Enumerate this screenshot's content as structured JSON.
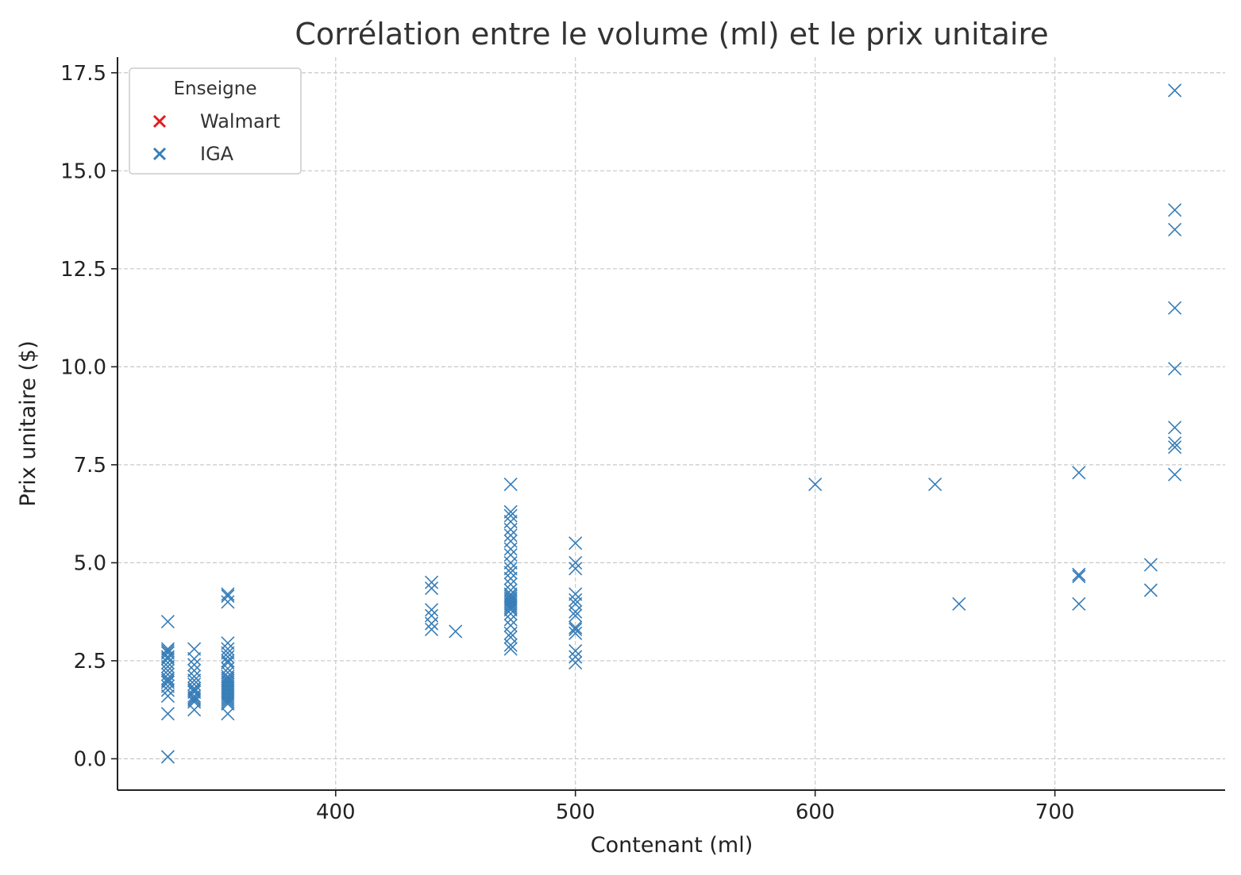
{
  "chart_data": {
    "type": "scatter",
    "title": "Corrélation entre le volume (ml) et le prix unitaire",
    "xlabel": "Contenant (ml)",
    "ylabel": "Prix unitaire ($)",
    "xlim": [
      309,
      771
    ],
    "ylim": [
      -0.8,
      17.9
    ],
    "xticks": [
      400,
      500,
      600,
      700
    ],
    "xtick_labels": [
      "400",
      "500",
      "600",
      "700"
    ],
    "yticks": [
      0,
      2.5,
      5,
      7.5,
      10,
      12.5,
      15,
      17.5
    ],
    "ytick_labels": [
      "0.0",
      "2.5",
      "5.0",
      "7.5",
      "10.0",
      "12.5",
      "15.0",
      "17.5"
    ],
    "grid": true,
    "marker": "x",
    "legend": {
      "title": "Enseigne",
      "position": "top-left",
      "entries": [
        {
          "name": "Walmart",
          "color": "#e41a1c"
        },
        {
          "name": "IGA",
          "color": "#377eb8"
        }
      ]
    },
    "series": [
      {
        "name": "Walmart",
        "color": "#e41a1c",
        "points": []
      },
      {
        "name": "IGA",
        "color": "#377eb8",
        "points": [
          [
            330,
            0.05
          ],
          [
            330,
            1.15
          ],
          [
            330,
            1.6
          ],
          [
            330,
            1.75
          ],
          [
            330,
            1.85
          ],
          [
            330,
            1.95
          ],
          [
            330,
            2.0
          ],
          [
            330,
            2.05
          ],
          [
            330,
            2.15
          ],
          [
            330,
            2.25
          ],
          [
            330,
            2.35
          ],
          [
            330,
            2.45
          ],
          [
            330,
            2.55
          ],
          [
            330,
            2.6
          ],
          [
            330,
            2.7
          ],
          [
            330,
            2.75
          ],
          [
            330,
            2.8
          ],
          [
            330,
            3.5
          ],
          [
            341,
            1.25
          ],
          [
            341,
            1.45
          ],
          [
            341,
            1.5
          ],
          [
            341,
            1.55
          ],
          [
            341,
            1.6
          ],
          [
            341,
            1.7
          ],
          [
            341,
            1.75
          ],
          [
            341,
            1.8
          ],
          [
            341,
            1.9
          ],
          [
            341,
            2.0
          ],
          [
            341,
            2.1
          ],
          [
            341,
            2.25
          ],
          [
            341,
            2.4
          ],
          [
            341,
            2.55
          ],
          [
            341,
            2.8
          ],
          [
            355,
            1.15
          ],
          [
            355,
            1.4
          ],
          [
            355,
            1.45
          ],
          [
            355,
            1.5
          ],
          [
            355,
            1.55
          ],
          [
            355,
            1.6
          ],
          [
            355,
            1.65
          ],
          [
            355,
            1.7
          ],
          [
            355,
            1.75
          ],
          [
            355,
            1.8
          ],
          [
            355,
            1.85
          ],
          [
            355,
            1.9
          ],
          [
            355,
            1.95
          ],
          [
            355,
            2.0
          ],
          [
            355,
            2.05
          ],
          [
            355,
            2.1
          ],
          [
            355,
            2.2
          ],
          [
            355,
            2.3
          ],
          [
            355,
            2.45
          ],
          [
            355,
            2.5
          ],
          [
            355,
            2.6
          ],
          [
            355,
            2.7
          ],
          [
            355,
            2.8
          ],
          [
            355,
            2.95
          ],
          [
            355,
            4.0
          ],
          [
            355,
            4.15
          ],
          [
            355,
            4.2
          ],
          [
            440,
            3.3
          ],
          [
            440,
            3.45
          ],
          [
            440,
            3.65
          ],
          [
            440,
            3.8
          ],
          [
            440,
            4.35
          ],
          [
            440,
            4.5
          ],
          [
            450,
            3.25
          ],
          [
            473,
            2.8
          ],
          [
            473,
            2.9
          ],
          [
            473,
            3.1
          ],
          [
            473,
            3.2
          ],
          [
            473,
            3.4
          ],
          [
            473,
            3.55
          ],
          [
            473,
            3.7
          ],
          [
            473,
            3.8
          ],
          [
            473,
            3.85
          ],
          [
            473,
            3.9
          ],
          [
            473,
            3.95
          ],
          [
            473,
            4.0
          ],
          [
            473,
            4.05
          ],
          [
            473,
            4.1
          ],
          [
            473,
            4.15
          ],
          [
            473,
            4.2
          ],
          [
            473,
            4.3
          ],
          [
            473,
            4.45
          ],
          [
            473,
            4.6
          ],
          [
            473,
            4.75
          ],
          [
            473,
            4.85
          ],
          [
            473,
            5.0
          ],
          [
            473,
            5.2
          ],
          [
            473,
            5.35
          ],
          [
            473,
            5.55
          ],
          [
            473,
            5.7
          ],
          [
            473,
            5.85
          ],
          [
            473,
            6.05
          ],
          [
            473,
            6.2
          ],
          [
            473,
            6.3
          ],
          [
            473,
            7.0
          ],
          [
            500,
            2.45
          ],
          [
            500,
            2.6
          ],
          [
            500,
            2.75
          ],
          [
            500,
            3.2
          ],
          [
            500,
            3.3
          ],
          [
            500,
            3.35
          ],
          [
            500,
            3.65
          ],
          [
            500,
            3.75
          ],
          [
            500,
            3.95
          ],
          [
            500,
            4.05
          ],
          [
            500,
            4.2
          ],
          [
            500,
            4.85
          ],
          [
            500,
            5.0
          ],
          [
            500,
            5.5
          ],
          [
            600,
            7.0
          ],
          [
            650,
            7.0
          ],
          [
            660,
            3.95
          ],
          [
            710,
            3.95
          ],
          [
            710,
            4.65
          ],
          [
            710,
            4.7
          ],
          [
            710,
            7.3
          ],
          [
            740,
            4.3
          ],
          [
            740,
            4.95
          ],
          [
            750,
            7.25
          ],
          [
            750,
            7.95
          ],
          [
            750,
            8.05
          ],
          [
            750,
            8.45
          ],
          [
            750,
            9.95
          ],
          [
            750,
            11.5
          ],
          [
            750,
            13.5
          ],
          [
            750,
            14.0
          ],
          [
            750,
            17.05
          ]
        ]
      }
    ]
  }
}
